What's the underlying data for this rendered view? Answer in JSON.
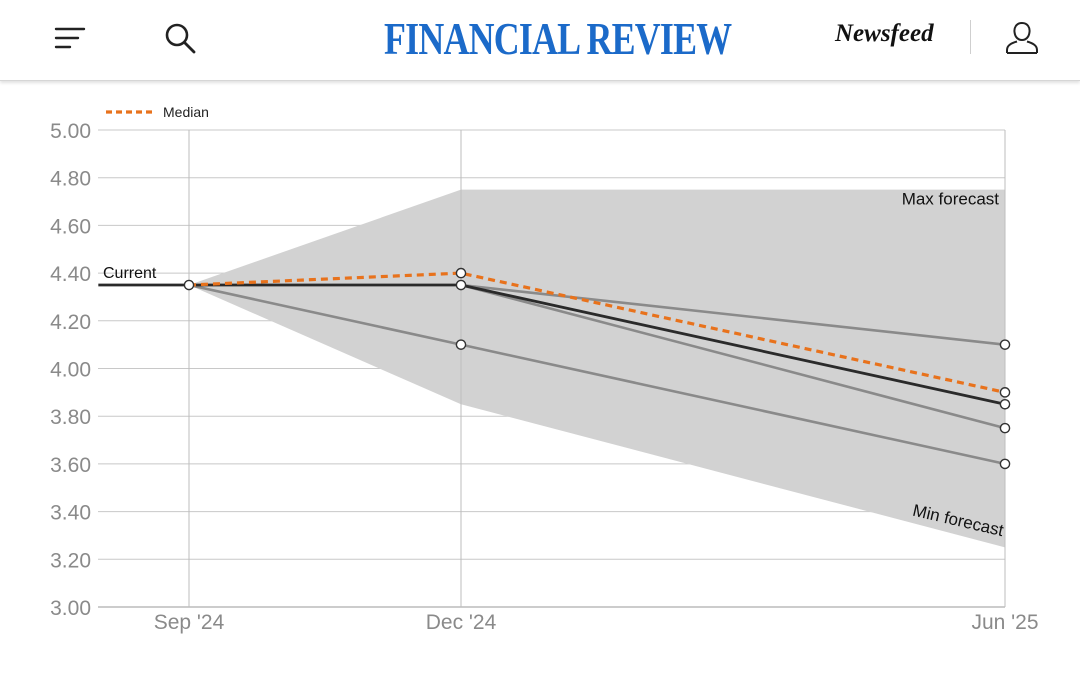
{
  "header": {
    "brand": "FINANCIAL REVIEW",
    "newsfeed_label": "Newsfeed",
    "icons": [
      "menu-icon",
      "search-icon",
      "user-icon"
    ],
    "brand_color": "#1b6ac9"
  },
  "chart_data": {
    "type": "line",
    "title": "",
    "xlabel": "",
    "ylabel": "",
    "ylim": [
      3.0,
      5.0
    ],
    "y_ticks": [
      "5.00",
      "4.80",
      "4.60",
      "4.40",
      "4.20",
      "4.00",
      "3.80",
      "3.60",
      "3.40",
      "3.20",
      "3.00"
    ],
    "x_ticks": [
      "Sep '24",
      "Dec '24",
      "Jun '25"
    ],
    "x_tick_positions": [
      0,
      3,
      9
    ],
    "x_range": [
      -1,
      9
    ],
    "grid": true,
    "legend": {
      "placement": "top-left",
      "label": "Median"
    },
    "colors": {
      "median": "#e8721c",
      "current": "#2a2a2a",
      "forecast": "#8a8a8a",
      "band": "#d2d2d2",
      "grid": "#c8c8c8"
    },
    "band": {
      "upper": [
        [
          0,
          4.35
        ],
        [
          3,
          4.75
        ],
        [
          9,
          4.75
        ]
      ],
      "lower": [
        [
          0,
          4.35
        ],
        [
          3,
          3.85
        ],
        [
          9,
          3.25
        ]
      ]
    },
    "series": [
      {
        "name": "Median",
        "style": "median",
        "points": [
          [
            0,
            4.35
          ],
          [
            3,
            4.4
          ],
          [
            9,
            3.9
          ]
        ]
      },
      {
        "style": "current",
        "points": [
          [
            -1,
            4.35
          ],
          [
            0,
            4.35
          ],
          [
            3,
            4.35
          ],
          [
            9,
            3.85
          ]
        ]
      },
      {
        "style": "forecast",
        "points": [
          [
            3,
            4.35
          ],
          [
            9,
            4.1
          ]
        ]
      },
      {
        "style": "forecast",
        "points": [
          [
            3,
            4.35
          ],
          [
            9,
            3.75
          ]
        ]
      },
      {
        "style": "forecast",
        "points": [
          [
            0,
            4.35
          ],
          [
            3,
            4.1
          ],
          [
            9,
            3.6
          ]
        ]
      }
    ],
    "markers": [
      [
        0,
        4.35
      ],
      [
        3,
        4.4
      ],
      [
        3,
        4.35
      ],
      [
        3,
        4.1
      ],
      [
        9,
        4.1
      ],
      [
        9,
        3.9
      ],
      [
        9,
        3.85
      ],
      [
        9,
        3.75
      ],
      [
        9,
        3.6
      ]
    ],
    "annotations": {
      "current": "Current",
      "max": "Max forecast",
      "min": "Min forecast"
    }
  }
}
